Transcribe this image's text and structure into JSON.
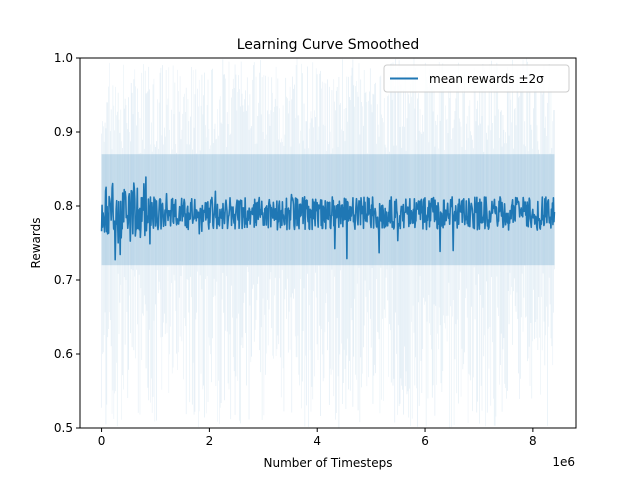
{
  "chart_data": {
    "type": "line",
    "title": "Learning Curve Smoothed",
    "xlabel": "Number of Timesteps",
    "ylabel": "Rewards",
    "x_offset_label": "1e6",
    "xlim": [
      -0.4,
      8.8
    ],
    "ylim": [
      0.5,
      1.0
    ],
    "x_ticks": [
      0,
      2,
      4,
      6,
      8
    ],
    "x_tick_labels": [
      "0",
      "2",
      "4",
      "6",
      "8"
    ],
    "y_ticks": [
      0.5,
      0.6,
      0.7,
      0.8,
      0.9,
      1.0
    ],
    "y_tick_labels": [
      "0.5",
      "0.6",
      "0.7",
      "0.8",
      "0.9",
      "1.0"
    ],
    "legend": {
      "position": "top-right",
      "entries": [
        "mean rewards ±2σ"
      ]
    },
    "grid": false,
    "series": [
      {
        "name": "mean rewards ±2σ",
        "color": "#1f77b4",
        "band_color": "#1f77b4",
        "x_start": 0.0,
        "x_end": 8.4,
        "mean_level": 0.79,
        "early_noise_range": [
          0.67,
          0.86
        ],
        "late_noise_range": [
          0.725,
          0.82
        ],
        "band_core": [
          0.72,
          0.87
        ],
        "band_extreme": [
          0.5,
          1.0
        ],
        "x_points": [
          0.0,
          0.1,
          0.2,
          0.3,
          0.4,
          0.5,
          0.6,
          0.7,
          0.8,
          1.0,
          1.5,
          2.0,
          3.0,
          4.0,
          5.0,
          6.0,
          7.0,
          8.0,
          8.4
        ],
        "y_points": [
          0.78,
          0.81,
          0.75,
          0.79,
          0.83,
          0.76,
          0.8,
          0.74,
          0.79,
          0.79,
          0.79,
          0.79,
          0.79,
          0.79,
          0.79,
          0.79,
          0.79,
          0.79,
          0.79
        ]
      }
    ]
  }
}
